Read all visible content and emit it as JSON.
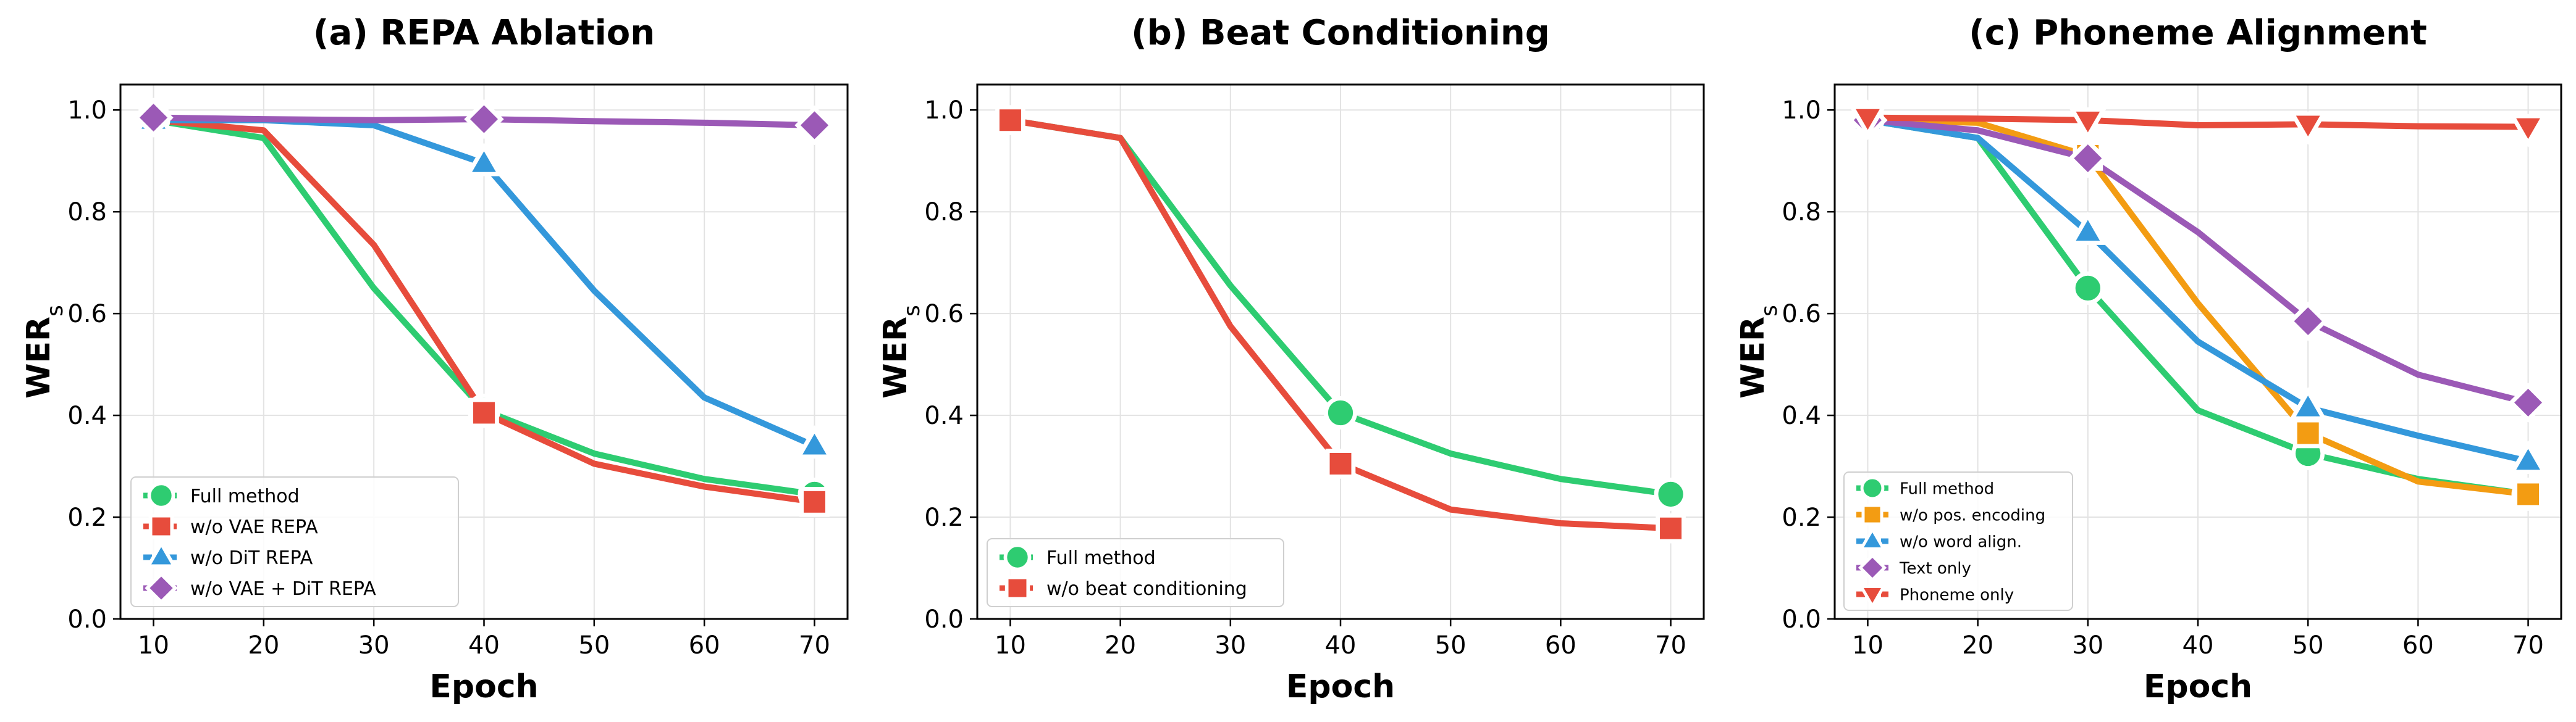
{
  "chart_data": [
    {
      "type": "line",
      "title": "(a) REPA Ablation",
      "xlabel": "Epoch",
      "ylabel": "WER",
      "ylabel_sub": "s",
      "x": [
        10,
        20,
        30,
        40,
        50,
        60,
        70
      ],
      "xlim": [
        7,
        73
      ],
      "ylim": [
        0,
        1.05
      ],
      "xticks": [
        "10",
        "20",
        "30",
        "40",
        "50",
        "60",
        "70"
      ],
      "yticks": [
        "0.0",
        "0.2",
        "0.4",
        "0.6",
        "0.8",
        "1.0"
      ],
      "grid": true,
      "legend_position": "lower-left",
      "series": [
        {
          "name": "Full method",
          "color": "#2ecc71",
          "marker": "circle",
          "values": [
            0.98,
            0.945,
            0.65,
            0.41,
            0.325,
            0.275,
            0.245
          ],
          "marker_at": [
            10,
            40,
            70
          ]
        },
        {
          "name": "w/o VAE REPA",
          "color": "#e74c3c",
          "marker": "square",
          "values": [
            0.98,
            0.96,
            0.735,
            0.405,
            0.305,
            0.26,
            0.23
          ],
          "marker_at": [
            10,
            40,
            70
          ]
        },
        {
          "name": "w/o DiT REPA",
          "color": "#3498db",
          "marker": "triangle-up",
          "values": [
            0.98,
            0.98,
            0.97,
            0.895,
            0.645,
            0.435,
            0.34
          ],
          "marker_at": [
            10,
            40,
            70
          ]
        },
        {
          "name": "w/o VAE + DiT REPA",
          "color": "#9b59b6",
          "marker": "diamond",
          "values": [
            0.985,
            0.982,
            0.98,
            0.982,
            0.978,
            0.975,
            0.97
          ],
          "marker_at": [
            10,
            40,
            70
          ]
        }
      ]
    },
    {
      "type": "line",
      "title": "(b) Beat Conditioning",
      "xlabel": "Epoch",
      "ylabel": "WER",
      "ylabel_sub": "s",
      "x": [
        10,
        20,
        30,
        40,
        50,
        60,
        70
      ],
      "xlim": [
        7,
        73
      ],
      "ylim": [
        0,
        1.05
      ],
      "xticks": [
        "10",
        "20",
        "30",
        "40",
        "50",
        "60",
        "70"
      ],
      "yticks": [
        "0.0",
        "0.2",
        "0.4",
        "0.6",
        "0.8",
        "1.0"
      ],
      "grid": true,
      "legend_position": "lower-left",
      "series": [
        {
          "name": "Full method",
          "color": "#2ecc71",
          "marker": "circle",
          "values": [
            0.98,
            0.945,
            0.655,
            0.405,
            0.325,
            0.275,
            0.245
          ],
          "marker_at": [
            40,
            70
          ]
        },
        {
          "name": "w/o beat conditioning",
          "color": "#e74c3c",
          "marker": "square",
          "values": [
            0.98,
            0.945,
            0.575,
            0.305,
            0.215,
            0.188,
            0.178
          ],
          "marker_at": [
            10,
            40,
            70
          ]
        }
      ]
    },
    {
      "type": "line",
      "title": "(c) Phoneme Alignment",
      "xlabel": "Epoch",
      "ylabel": "WER",
      "ylabel_sub": "s",
      "x": [
        10,
        20,
        30,
        40,
        50,
        60,
        70
      ],
      "xlim": [
        7,
        73
      ],
      "ylim": [
        0,
        1.05
      ],
      "xticks": [
        "10",
        "20",
        "30",
        "40",
        "50",
        "60",
        "70"
      ],
      "yticks": [
        "0.0",
        "0.2",
        "0.4",
        "0.6",
        "0.8",
        "1.0"
      ],
      "grid": true,
      "legend_position": "lower-left",
      "series": [
        {
          "name": "Full method",
          "color": "#2ecc71",
          "marker": "circle",
          "values": [
            0.98,
            0.945,
            0.65,
            0.41,
            0.325,
            0.275,
            0.245
          ],
          "marker_at": [
            10,
            30,
            50,
            70
          ]
        },
        {
          "name": "w/o pos. encoding",
          "color": "#f39c12",
          "marker": "square",
          "values": [
            0.98,
            0.975,
            0.91,
            0.62,
            0.365,
            0.27,
            0.245
          ],
          "marker_at": [
            10,
            30,
            50,
            70
          ]
        },
        {
          "name": "w/o word align.",
          "color": "#3498db",
          "marker": "triangle-up",
          "values": [
            0.98,
            0.945,
            0.76,
            0.545,
            0.415,
            0.36,
            0.31
          ],
          "marker_at": [
            10,
            30,
            50,
            70
          ]
        },
        {
          "name": "Text only",
          "color": "#9b59b6",
          "marker": "diamond",
          "values": [
            0.98,
            0.96,
            0.905,
            0.76,
            0.585,
            0.48,
            0.425
          ],
          "marker_at": [
            10,
            30,
            50,
            70
          ]
        },
        {
          "name": "Phoneme only",
          "color": "#e74c3c",
          "marker": "triangle-down",
          "values": [
            0.985,
            0.983,
            0.98,
            0.97,
            0.972,
            0.968,
            0.967
          ],
          "marker_at": [
            10,
            30,
            50,
            70
          ]
        }
      ]
    }
  ]
}
